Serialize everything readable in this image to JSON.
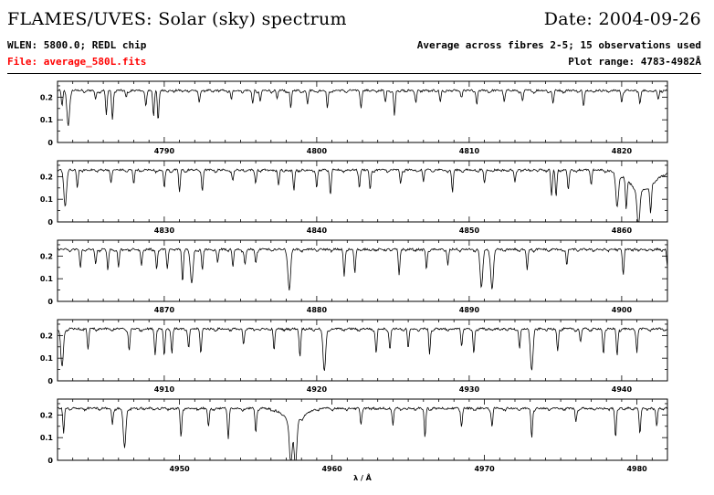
{
  "header": {
    "title": "FLAMES/UVES: Solar (sky) spectrum",
    "date": "Date: 2004-09-26",
    "wlen": "WLEN: 5800.0; REDL chip",
    "file": "File: average_580L.fits",
    "average": "Average across fibres 2-5; 15 observations used",
    "plot_range": "Plot range: 4783-4982Å"
  },
  "colors": {
    "file_text": "#ff0000",
    "line": "#000000"
  },
  "chart_data": {
    "type": "line",
    "title": "",
    "xlabel": "λ / Å",
    "ylabel": "",
    "grid": false,
    "continuum": 0.23,
    "panels": [
      {
        "xlim": [
          4783,
          4823
        ],
        "ylim": [
          0,
          0.27
        ],
        "x_ticks": [
          4790,
          4800,
          4810,
          4820
        ],
        "y_ticks": [
          0,
          0.1,
          0.2
        ],
        "y_ticklabels": [
          "0",
          "0.1",
          "0.2"
        ],
        "lines": [
          [
            4783.3,
            0.16
          ],
          [
            4783.7,
            0.08
          ],
          [
            4785.5,
            0.19
          ],
          [
            4786.2,
            0.12
          ],
          [
            4786.6,
            0.1
          ],
          [
            4787.5,
            0.2
          ],
          [
            4788.8,
            0.16
          ],
          [
            4789.3,
            0.12
          ],
          [
            4789.6,
            0.1
          ],
          [
            4792.3,
            0.18
          ],
          [
            4794.4,
            0.19
          ],
          [
            4795.8,
            0.17
          ],
          [
            4796.3,
            0.18
          ],
          [
            4797.4,
            0.19
          ],
          [
            4798.3,
            0.15
          ],
          [
            4799.4,
            0.17
          ],
          [
            4800.7,
            0.15
          ],
          [
            4802.9,
            0.16
          ],
          [
            4804.5,
            0.18
          ],
          [
            4805.1,
            0.12
          ],
          [
            4806.5,
            0.18
          ],
          [
            4808.1,
            0.18
          ],
          [
            4809.5,
            0.2
          ],
          [
            4810.5,
            0.17
          ],
          [
            4812.3,
            0.19
          ],
          [
            4813.5,
            0.18
          ],
          [
            4815.5,
            0.17
          ],
          [
            4817.5,
            0.16
          ],
          [
            4820.0,
            0.18
          ],
          [
            4821.2,
            0.17
          ],
          [
            4822.4,
            0.19
          ]
        ]
      },
      {
        "xlim": [
          4823,
          4863
        ],
        "ylim": [
          0,
          0.27
        ],
        "x_ticks": [
          4830,
          4840,
          4850,
          4860
        ],
        "y_ticks": [
          0,
          0.1,
          0.2
        ],
        "y_ticklabels": [
          "0",
          "0.1",
          "0.2"
        ],
        "lines": [
          [
            4823.5,
            0.07
          ],
          [
            4824.3,
            0.15
          ],
          [
            4826.5,
            0.18
          ],
          [
            4828.0,
            0.17
          ],
          [
            4830.0,
            0.15
          ],
          [
            4831.0,
            0.13
          ],
          [
            4832.5,
            0.14
          ],
          [
            4834.5,
            0.18
          ],
          [
            4836.0,
            0.17
          ],
          [
            4837.5,
            0.16
          ],
          [
            4838.5,
            0.14
          ],
          [
            4840.0,
            0.15
          ],
          [
            4840.9,
            0.12
          ],
          [
            4842.8,
            0.16
          ],
          [
            4843.5,
            0.14
          ],
          [
            4845.5,
            0.17
          ],
          [
            4847.0,
            0.18
          ],
          [
            4848.9,
            0.13
          ],
          [
            4851.0,
            0.17
          ],
          [
            4853.0,
            0.18
          ],
          [
            4855.4,
            0.12
          ],
          [
            4855.7,
            0.11
          ],
          [
            4856.5,
            0.14
          ],
          [
            4858.0,
            0.17
          ],
          [
            4859.7,
            0.08
          ],
          [
            4860.3,
            0.1
          ],
          [
            4861.1,
            0.06
          ],
          [
            4861.9,
            0.12
          ]
        ]
      },
      {
        "xlim": [
          4863,
          4903
        ],
        "ylim": [
          0,
          0.27
        ],
        "x_ticks": [
          4870,
          4880,
          4890,
          4900
        ],
        "y_ticks": [
          0,
          0.1,
          0.2
        ],
        "y_ticklabels": [
          "0",
          "0.1",
          "0.2"
        ],
        "lines": [
          [
            4864.5,
            0.15
          ],
          [
            4865.5,
            0.16
          ],
          [
            4866.3,
            0.14
          ],
          [
            4867.0,
            0.15
          ],
          [
            4868.5,
            0.16
          ],
          [
            4869.5,
            0.14
          ],
          [
            4870.2,
            0.15
          ],
          [
            4871.2,
            0.09
          ],
          [
            4871.8,
            0.08
          ],
          [
            4872.5,
            0.14
          ],
          [
            4873.5,
            0.17
          ],
          [
            4874.5,
            0.15
          ],
          [
            4875.3,
            0.16
          ],
          [
            4876.0,
            0.17
          ],
          [
            4878.2,
            0.05
          ],
          [
            4881.8,
            0.11
          ],
          [
            4882.5,
            0.13
          ],
          [
            4885.4,
            0.12
          ],
          [
            4887.2,
            0.14
          ],
          [
            4888.6,
            0.16
          ],
          [
            4890.8,
            0.06
          ],
          [
            4891.5,
            0.05
          ],
          [
            4893.8,
            0.14
          ],
          [
            4896.4,
            0.16
          ],
          [
            4900.1,
            0.12
          ],
          [
            4903.0,
            0.15
          ]
        ]
      },
      {
        "xlim": [
          4903,
          4943
        ],
        "ylim": [
          0,
          0.27
        ],
        "x_ticks": [
          4910,
          4920,
          4930,
          4940
        ],
        "y_ticks": [
          0,
          0.1,
          0.2
        ],
        "y_ticklabels": [
          "0",
          "0.1",
          "0.2"
        ],
        "lines": [
          [
            4903.3,
            0.06
          ],
          [
            4905.0,
            0.14
          ],
          [
            4907.7,
            0.13
          ],
          [
            4909.4,
            0.12
          ],
          [
            4910.0,
            0.11
          ],
          [
            4910.5,
            0.13
          ],
          [
            4911.6,
            0.14
          ],
          [
            4912.4,
            0.13
          ],
          [
            4915.2,
            0.16
          ],
          [
            4917.2,
            0.14
          ],
          [
            4918.9,
            0.11
          ],
          [
            4920.5,
            0.04
          ],
          [
            4923.9,
            0.12
          ],
          [
            4924.8,
            0.14
          ],
          [
            4926.0,
            0.14
          ],
          [
            4927.4,
            0.12
          ],
          [
            4929.5,
            0.16
          ],
          [
            4930.3,
            0.12
          ],
          [
            4933.3,
            0.14
          ],
          [
            4934.1,
            0.05
          ],
          [
            4935.8,
            0.13
          ],
          [
            4937.3,
            0.17
          ],
          [
            4938.8,
            0.12
          ],
          [
            4939.7,
            0.11
          ],
          [
            4941.0,
            0.13
          ]
        ]
      },
      {
        "xlim": [
          4942,
          4982
        ],
        "ylim": [
          0,
          0.27
        ],
        "x_ticks": [
          4950,
          4960,
          4970,
          4980
        ],
        "y_ticks": [
          0,
          0.1,
          0.2
        ],
        "y_ticklabels": [
          "0",
          "0.1",
          "0.2"
        ],
        "lines": [
          [
            4942.4,
            0.12
          ],
          [
            4945.6,
            0.16
          ],
          [
            4946.4,
            0.06
          ],
          [
            4950.1,
            0.1
          ],
          [
            4951.9,
            0.15
          ],
          [
            4953.2,
            0.1
          ],
          [
            4955.0,
            0.12
          ],
          [
            4957.3,
            0.03
          ],
          [
            4957.6,
            0.02
          ],
          [
            4961.9,
            0.16
          ],
          [
            4964.0,
            0.16
          ],
          [
            4966.1,
            0.1
          ],
          [
            4968.5,
            0.15
          ],
          [
            4970.5,
            0.15
          ],
          [
            4973.1,
            0.1
          ],
          [
            4976.0,
            0.17
          ],
          [
            4978.6,
            0.1
          ],
          [
            4980.2,
            0.12
          ],
          [
            4981.3,
            0.15
          ]
        ]
      }
    ]
  }
}
